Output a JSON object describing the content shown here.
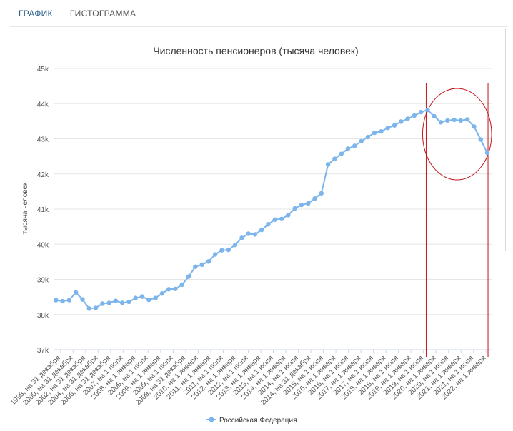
{
  "tabs": [
    {
      "label": "ГРАФИК",
      "active": true
    },
    {
      "label": "ГИСТОГРАММА",
      "active": false
    }
  ],
  "colors": {
    "series": "#7cb5ec",
    "annotation": "#c0141b",
    "grid": "#e6e6e6"
  },
  "chart_data": {
    "type": "line",
    "title": "Численность пенсионеров (тысяча человек)",
    "ylabel": "тысяча человек",
    "ylim": [
      37,
      45
    ],
    "y_ticks": [
      "37k",
      "38k",
      "39k",
      "40k",
      "41k",
      "42k",
      "43k",
      "44k",
      "45k"
    ],
    "y_tick_values": [
      37,
      38,
      39,
      40,
      41,
      42,
      43,
      44,
      45
    ],
    "x_tick_labels": [
      "1998, на 31 декабря",
      "2000, на 31 декабря",
      "2002, на 31 декабря",
      "2004, на 31 декабря",
      "2006, на 31 декабря",
      "2007, на 1 июля",
      "2008, на 1 января",
      "2008, на 1 июля",
      "2009, на 1 января",
      "2009, на 1 июля",
      "2009, на 31 декабря",
      "2010, на 1 января",
      "2011, на 1 января",
      "2011, на 1 июля",
      "2012, на 1 января",
      "2012, на 1 июля",
      "2013, на 1 января",
      "2013, на 1 июля",
      "2014, на 1 января",
      "2014, на 1 июля",
      "2014, на 31 декабря",
      "2015, на 1 июля",
      "2016, на 1 января",
      "2016, на 1 июля",
      "2017, на 1 января",
      "2017, на 1 июля",
      "2018, на 1 января",
      "2018, на 1 июля",
      "2019, на 1 января",
      "2019, на 1 июля",
      "2020, на 1 января",
      "2020, на 1 июля",
      "2021, на 1 января",
      "2021, на 1 июля",
      "2022, на 1 января"
    ],
    "series": [
      {
        "name": "Российская Федерация",
        "values": [
          38.41,
          38.38,
          38.41,
          38.63,
          38.43,
          38.17,
          38.19,
          38.31,
          38.33,
          38.39,
          38.33,
          38.36,
          38.47,
          38.51,
          38.42,
          38.47,
          38.6,
          38.72,
          38.73,
          38.85,
          39.08,
          39.36,
          39.42,
          39.51,
          39.71,
          39.83,
          39.84,
          39.98,
          40.18,
          40.3,
          40.28,
          40.41,
          40.57,
          40.7,
          40.72,
          40.83,
          41.02,
          41.12,
          41.16,
          41.3,
          41.45,
          42.27,
          42.43,
          42.57,
          42.72,
          42.8,
          42.93,
          43.05,
          43.17,
          43.21,
          43.31,
          43.38,
          43.49,
          43.57,
          43.66,
          43.76,
          43.82,
          43.64,
          43.47,
          43.52,
          43.54,
          43.52,
          43.55,
          43.35,
          42.98,
          42.6
        ]
      }
    ],
    "annotation": {
      "type": "vertical-lines-and-ellipse",
      "from_index": 56,
      "to_index": 65
    },
    "legend": "bottom-center",
    "grid": true
  }
}
